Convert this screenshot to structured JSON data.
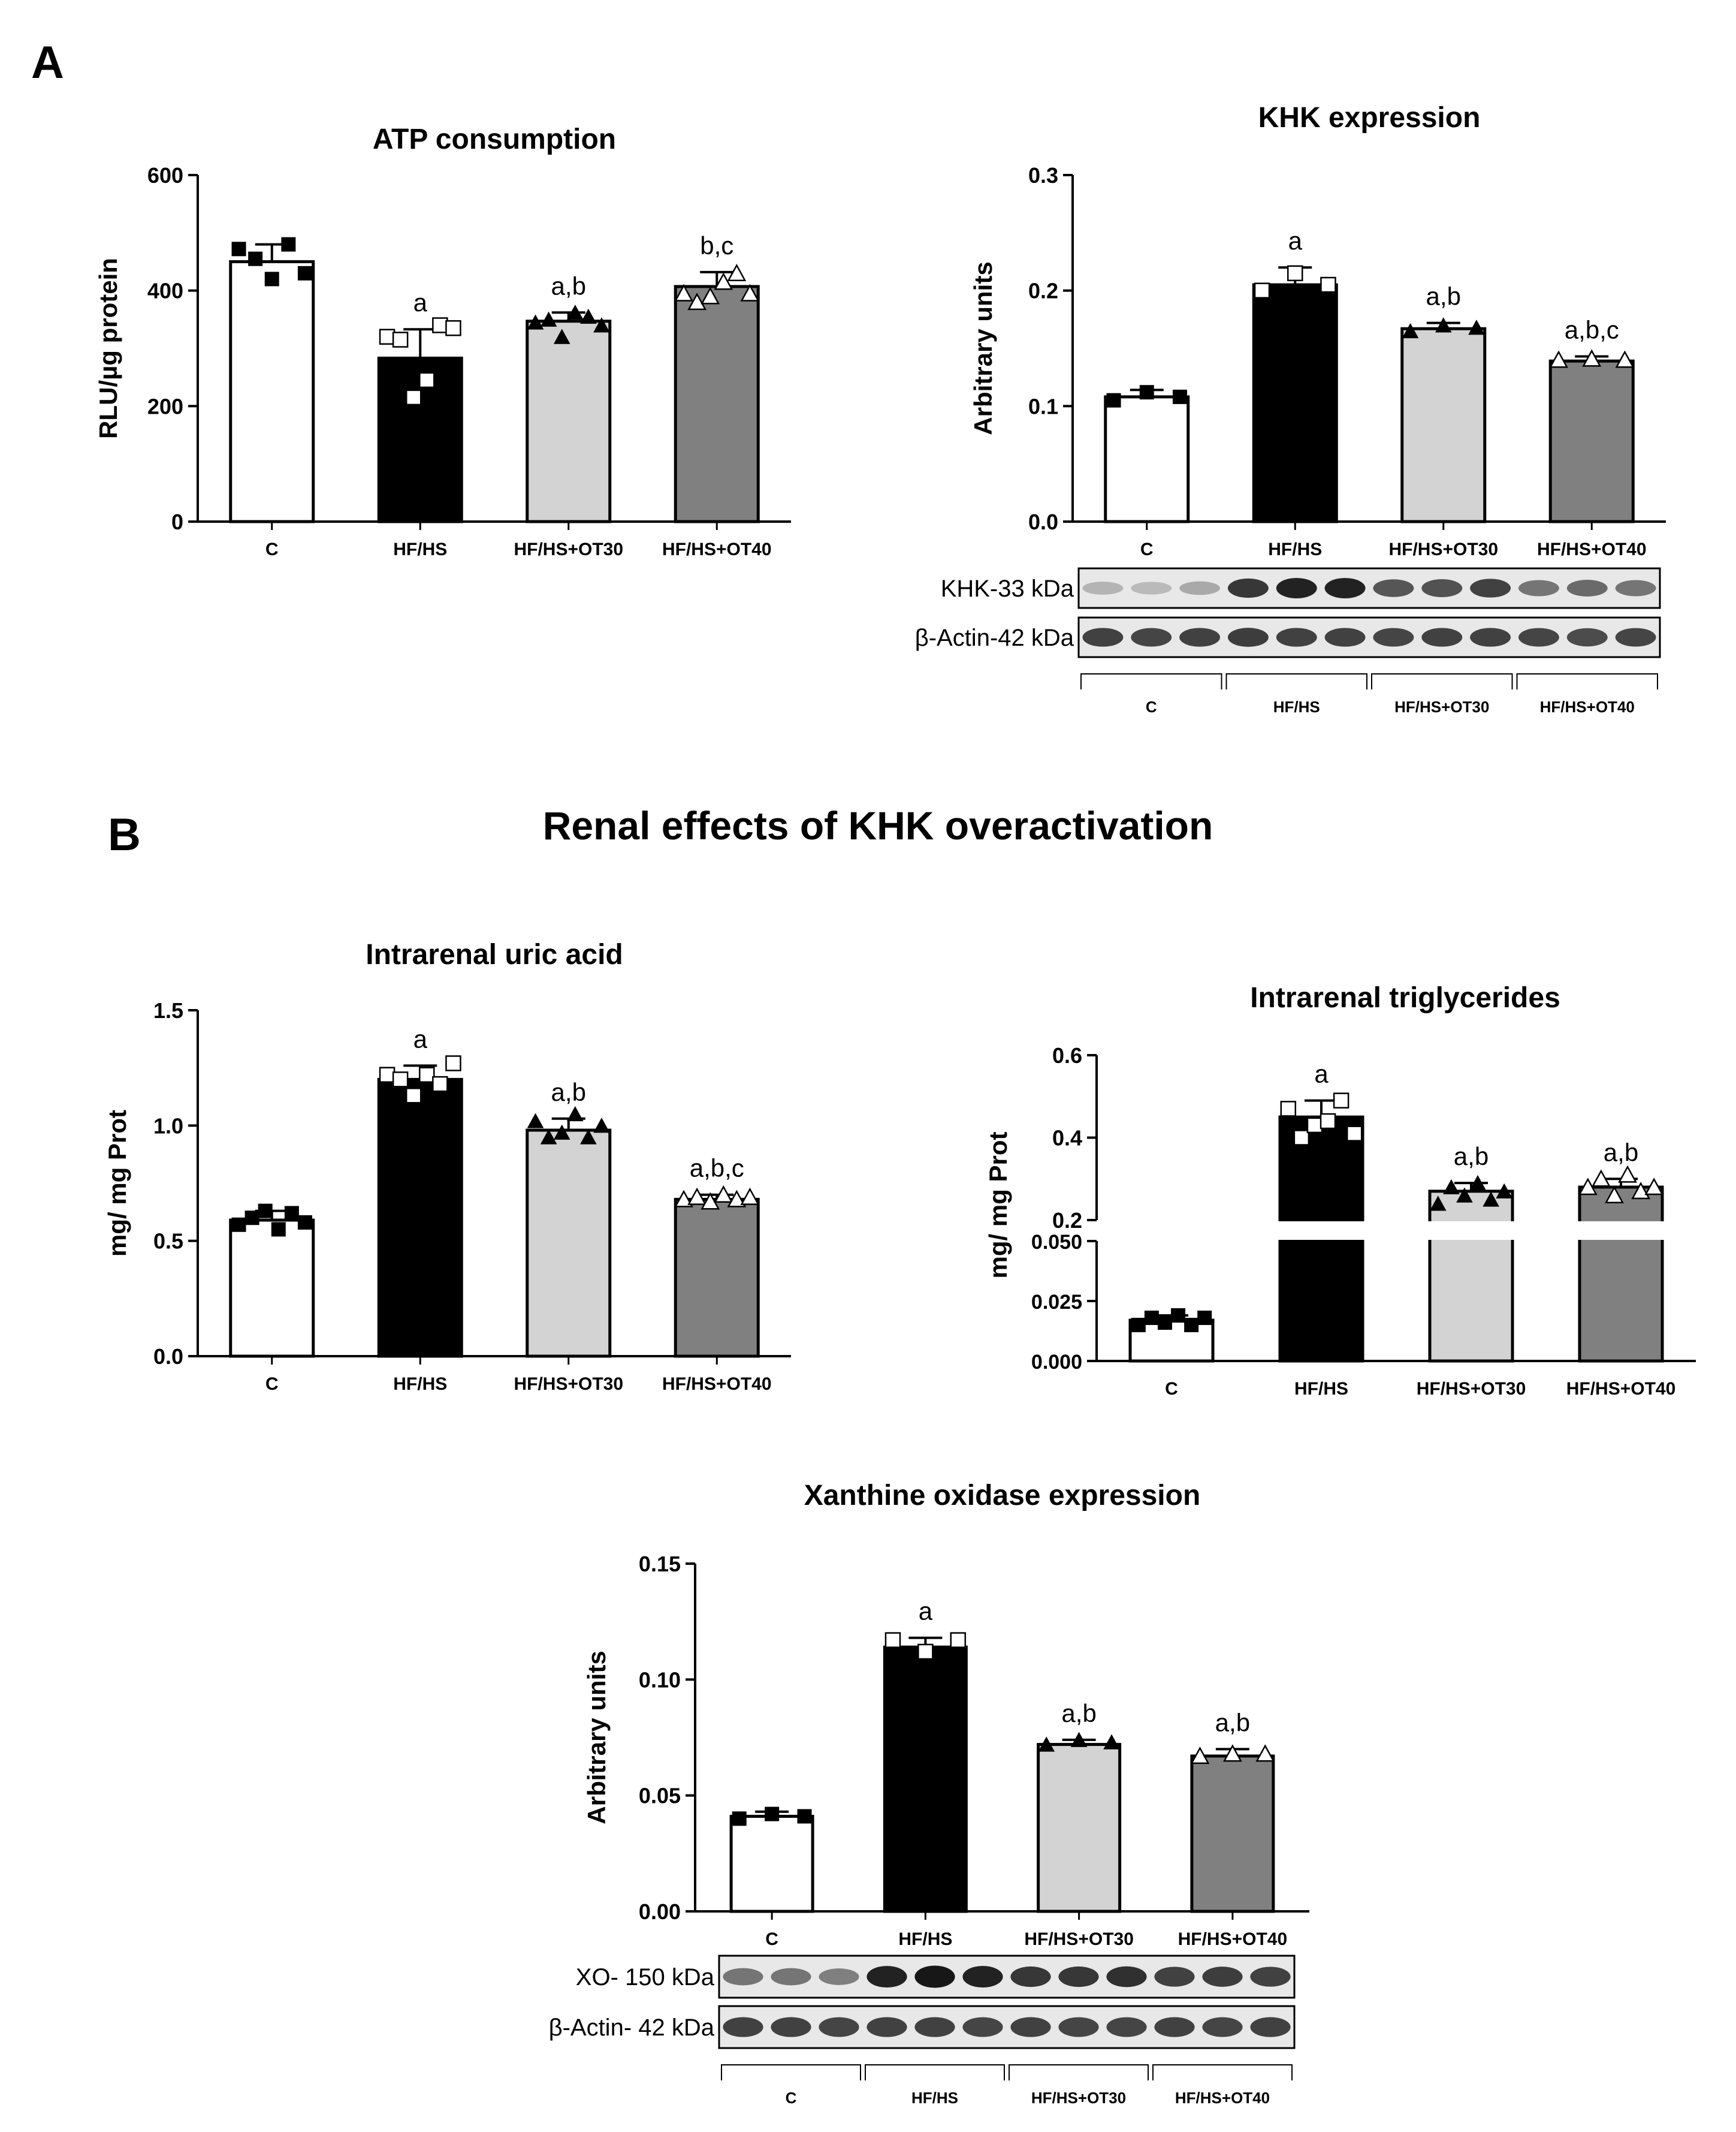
{
  "panel_labels": {
    "a": "A",
    "b": "B"
  },
  "section_b_title": "Renal effects of KHK overactivation",
  "colors": {
    "C": "#ffffff",
    "HF/HS": "#000000",
    "HF/HS+OT30": "#d3d3d3",
    "HF/HS+OT40": "#808080",
    "axis": "#000000"
  },
  "chart_data": [
    {
      "id": "atp",
      "type": "bar",
      "title": "ATP consumption",
      "ylabel": "RLU/µg protein",
      "categories": [
        "C",
        "HF/HS",
        "HF/HS+OT30",
        "HF/HS+OT40"
      ],
      "values": [
        450,
        283,
        347,
        407
      ],
      "errors": [
        30,
        50,
        15,
        25
      ],
      "significance": [
        "",
        "a",
        "a,b",
        "b,c"
      ],
      "points": [
        [
          472,
          455,
          420,
          480,
          430
        ],
        [
          320,
          315,
          215,
          245,
          340,
          335
        ],
        [
          345,
          350,
          320,
          362,
          355,
          340
        ],
        [
          395,
          380,
          390,
          415,
          430,
          395
        ]
      ],
      "ylim": [
        0,
        600
      ],
      "yticks": [
        0,
        200,
        400,
        600
      ],
      "ytick_labels": [
        "0",
        "200",
        "400",
        "600"
      ]
    },
    {
      "id": "khk",
      "type": "bar",
      "title": "KHK expression",
      "ylabel": "Arbitrary units",
      "categories": [
        "C",
        "HF/HS",
        "HF/HS+OT30",
        "HF/HS+OT40"
      ],
      "values": [
        0.108,
        0.205,
        0.167,
        0.139
      ],
      "errors": [
        0.006,
        0.015,
        0.005,
        0.004
      ],
      "significance": [
        "",
        "a",
        "a,b",
        "a,b,c"
      ],
      "points": [
        [
          0.105,
          0.112,
          0.108
        ],
        [
          0.2,
          0.215,
          0.205
        ],
        [
          0.165,
          0.17,
          0.168
        ],
        [
          0.14,
          0.141,
          0.14
        ]
      ],
      "ylim": [
        0,
        0.3
      ],
      "yticks": [
        0,
        0.1,
        0.2,
        0.3
      ],
      "ytick_labels": [
        "0.0",
        "0.1",
        "0.2",
        "0.3"
      ],
      "blot": {
        "rows": [
          "KHK-33 kDa",
          "β-Actin-42 kDa"
        ],
        "groups": [
          "C",
          "HF/HS",
          "HF/HS+OT30",
          "HF/HS+OT40"
        ],
        "lanes": 12
      }
    },
    {
      "id": "uric",
      "type": "bar",
      "title": "Intrarenal uric acid",
      "ylabel": "mg/ mg Prot",
      "categories": [
        "C",
        "HF/HS",
        "HF/HS+OT30",
        "HF/HS+OT40"
      ],
      "values": [
        0.59,
        1.2,
        0.98,
        0.68
      ],
      "errors": [
        0.04,
        0.06,
        0.05,
        0.02
      ],
      "significance": [
        "",
        "a",
        "a,b",
        "a,b,c"
      ],
      "points": [
        [
          0.57,
          0.6,
          0.63,
          0.55,
          0.62,
          0.58
        ],
        [
          1.22,
          1.2,
          1.13,
          1.22,
          1.18,
          1.27
        ],
        [
          1.02,
          0.95,
          0.97,
          1.05,
          0.95,
          1.0
        ],
        [
          0.68,
          0.69,
          0.67,
          0.7,
          0.68,
          0.69
        ]
      ],
      "ylim": [
        0,
        1.5
      ],
      "yticks": [
        0,
        0.5,
        1.0,
        1.5
      ],
      "ytick_labels": [
        "0.0",
        "0.5",
        "1.0",
        "1.5"
      ]
    },
    {
      "id": "tg",
      "type": "bar",
      "title": "Intrarenal triglycerides",
      "ylabel": "mg/ mg Prot",
      "categories": [
        "C",
        "HF/HS",
        "HF/HS+OT30",
        "HF/HS+OT40"
      ],
      "values": [
        0.017,
        0.45,
        0.27,
        0.28
      ],
      "errors": [
        0.002,
        0.04,
        0.02,
        0.02
      ],
      "significance": [
        "",
        "a",
        "a,b",
        "a,b"
      ],
      "points": [
        [
          0.015,
          0.018,
          0.016,
          0.019,
          0.015,
          0.018
        ],
        [
          0.47,
          0.4,
          0.43,
          0.44,
          0.49,
          0.41
        ],
        [
          0.24,
          0.28,
          0.26,
          0.29,
          0.25,
          0.27
        ],
        [
          0.28,
          0.3,
          0.26,
          0.31,
          0.27,
          0.28
        ]
      ],
      "broken_axis": {
        "lower_range": [
          0,
          0.05
        ],
        "upper_range": [
          0.2,
          0.6
        ]
      },
      "yticks_lower": [
        0,
        0.025,
        0.05
      ],
      "ytick_labels_lower": [
        "0.000",
        "0.025",
        "0.050"
      ],
      "yticks_upper": [
        0.2,
        0.4,
        0.6
      ],
      "ytick_labels_upper": [
        "0.2",
        "0.4",
        "0.6"
      ]
    },
    {
      "id": "xo",
      "type": "bar",
      "title": "Xanthine oxidase expression",
      "ylabel": "Arbitrary units",
      "categories": [
        "C",
        "HF/HS",
        "HF/HS+OT30",
        "HF/HS+OT40"
      ],
      "values": [
        0.041,
        0.114,
        0.072,
        0.067
      ],
      "errors": [
        0.002,
        0.004,
        0.002,
        0.003
      ],
      "significance": [
        "",
        "a",
        "a,b",
        "a,b"
      ],
      "points": [
        [
          0.04,
          0.042,
          0.041
        ],
        [
          0.117,
          0.112,
          0.117
        ],
        [
          0.072,
          0.074,
          0.073
        ],
        [
          0.067,
          0.068,
          0.068
        ]
      ],
      "ylim": [
        0,
        0.15
      ],
      "yticks": [
        0,
        0.05,
        0.1,
        0.15
      ],
      "ytick_labels": [
        "0.00",
        "0.05",
        "0.10",
        "0.15"
      ],
      "blot": {
        "rows": [
          "XO- 150 kDa",
          "β-Actin- 42 kDa"
        ],
        "groups": [
          "C",
          "HF/HS",
          "HF/HS+OT30",
          "HF/HS+OT40"
        ],
        "lanes": 12
      }
    }
  ]
}
